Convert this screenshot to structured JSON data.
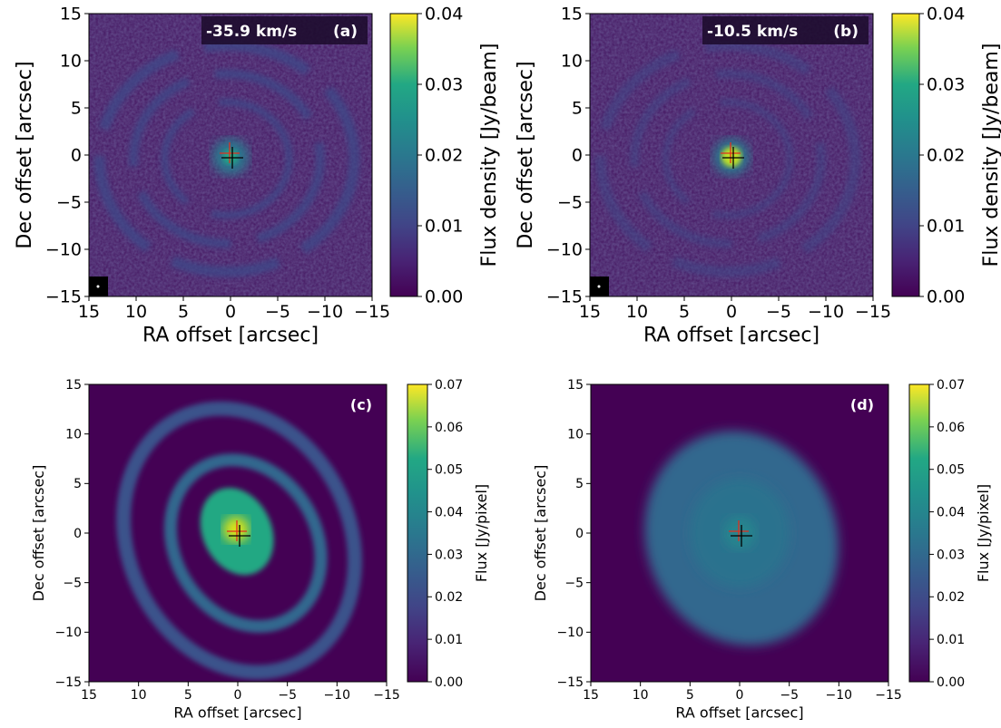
{
  "chart_data": [
    {
      "type": "image",
      "annotations": [
        "-35.9 km/s",
        "(a)"
      ],
      "xlabel": "RA offset [arcsec]",
      "ylabel": "Dec offset [arcsec]",
      "colorbar_label": "Flux density [Jy/beam]",
      "xlim": [
        15,
        -15
      ],
      "ylim": [
        -15,
        15
      ],
      "xticks": [
        15,
        10,
        5,
        0,
        {
          "value": -5,
          "label": "−5"
        },
        {
          "value": -10,
          "label": "−10"
        },
        {
          "value": -15,
          "label": "−15"
        }
      ],
      "yticks": [
        {
          "value": -15,
          "label": "−15"
        },
        {
          "value": -10,
          "label": "−10"
        },
        {
          "value": -5,
          "label": "−5"
        },
        0,
        5,
        10,
        15
      ],
      "clim": [
        0,
        0.04
      ],
      "cticks": [
        {
          "value": 0,
          "label": "0.00"
        },
        0.01,
        0.02,
        0.03,
        0.04
      ],
      "colormap": "viridis"
    },
    {
      "type": "image",
      "annotations": [
        "-10.5 km/s",
        "(b)"
      ],
      "xlabel": "RA offset [arcsec]",
      "ylabel": "Dec offset [arcsec]",
      "colorbar_label": "Flux density [Jy/beam]",
      "xlim": [
        15,
        -15
      ],
      "ylim": [
        -15,
        15
      ],
      "xticks": [
        15,
        10,
        5,
        0,
        {
          "value": -5,
          "label": "−5"
        },
        {
          "value": -10,
          "label": "−10"
        },
        {
          "value": -15,
          "label": "−15"
        }
      ],
      "yticks": [
        {
          "value": -15,
          "label": "−15"
        },
        {
          "value": -10,
          "label": "−10"
        },
        {
          "value": -5,
          "label": "−5"
        },
        0,
        5,
        10,
        15
      ],
      "clim": [
        0,
        0.04
      ],
      "cticks": [
        {
          "value": 0,
          "label": "0.00"
        },
        0.01,
        0.02,
        0.03,
        0.04
      ],
      "colormap": "viridis"
    },
    {
      "type": "image",
      "annotations": [
        "(c)"
      ],
      "xlabel": "RA offset [arcsec]",
      "ylabel": "Dec offset [arcsec]",
      "colorbar_label": "Flux [Jy/pixel]",
      "xlim": [
        15,
        -15
      ],
      "ylim": [
        -15,
        15
      ],
      "xticks": [
        15,
        10,
        5,
        0,
        {
          "value": -5,
          "label": "−5"
        },
        {
          "value": -10,
          "label": "−10"
        },
        {
          "value": -15,
          "label": "−15"
        }
      ],
      "yticks": [
        {
          "value": -15,
          "label": "−15"
        },
        {
          "value": -10,
          "label": "−10"
        },
        {
          "value": -5,
          "label": "−5"
        },
        0,
        5,
        10,
        15
      ],
      "clim": [
        0,
        0.07
      ],
      "cticks": [
        {
          "value": 0,
          "label": "0.00"
        },
        0.01,
        0.02,
        0.03,
        0.04,
        0.05,
        0.06,
        0.07
      ],
      "colormap": "viridis"
    },
    {
      "type": "image",
      "annotations": [
        "(d)"
      ],
      "xlabel": "RA offset [arcsec]",
      "ylabel": "Dec offset [arcsec]",
      "colorbar_label": "Flux [Jy/pixel]",
      "xlim": [
        15,
        -15
      ],
      "ylim": [
        -15,
        15
      ],
      "xticks": [
        15,
        10,
        5,
        0,
        {
          "value": -5,
          "label": "−5"
        },
        {
          "value": -10,
          "label": "−10"
        },
        {
          "value": -15,
          "label": "−15"
        }
      ],
      "yticks": [
        {
          "value": -15,
          "label": "−15"
        },
        {
          "value": -10,
          "label": "−10"
        },
        {
          "value": -5,
          "label": "−5"
        },
        0,
        5,
        10,
        15
      ],
      "clim": [
        0,
        0.07
      ],
      "cticks": [
        {
          "value": 0,
          "label": "0.00"
        },
        0.01,
        0.02,
        0.03,
        0.04,
        0.05,
        0.06,
        0.07
      ],
      "colormap": "viridis"
    }
  ]
}
